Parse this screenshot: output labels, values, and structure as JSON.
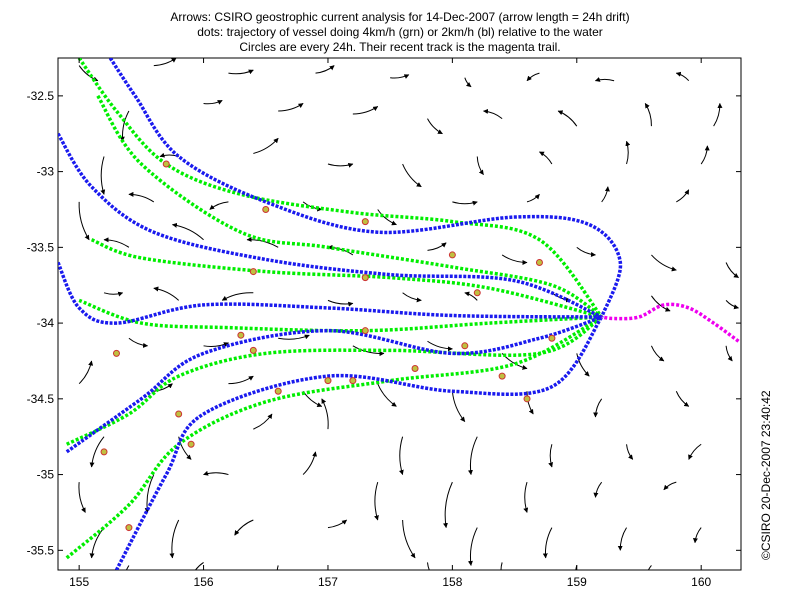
{
  "title_lines": [
    "Arrows: CSIRO geostrophic current analysis for 14-Dec-2007 (arrow length = 24h drift)",
    "dots: trajectory of vessel doing 4km/h (grn) or 2km/h (bl) relative to the water",
    "Circles are every 24h. Their recent track is the magenta trail."
  ],
  "stamp": "©CSIRO 20-Dec-2007 23:40:42",
  "colors": {
    "arrow": "#000000",
    "fast_track": "#00ee00",
    "slow_track": "#1a1aee",
    "recent_track": "#ee00ee",
    "day_marker_fill": "#c0c040",
    "day_marker_edge": "#cc3333"
  },
  "chart_data": {
    "type": "vector-field-with-trajectories",
    "xlim": [
      154.83,
      160.32
    ],
    "ylim": [
      -35.63,
      -32.25
    ],
    "x_ticks": [
      "155",
      "156",
      "157",
      "158",
      "159",
      "160"
    ],
    "x_tick_values": [
      155,
      156,
      157,
      158,
      159,
      160
    ],
    "y_ticks": [
      "-32.5",
      "-33",
      "-33.5",
      "-34",
      "-34.5",
      "-35",
      "-35.5"
    ],
    "y_tick_values": [
      -32.5,
      -33,
      -33.5,
      -34,
      -34.5,
      -35,
      -35.5
    ],
    "convergence_point": [
      159.2,
      -33.96
    ],
    "recent_track": [
      [
        160.3,
        -34.12
      ],
      [
        160.1,
        -34.0
      ],
      [
        159.9,
        -33.9
      ],
      [
        159.7,
        -33.88
      ],
      [
        159.5,
        -33.96
      ],
      [
        159.3,
        -33.97
      ],
      [
        159.2,
        -33.96
      ]
    ],
    "fast_tracks": [
      [
        [
          155.0,
          -32.25
        ],
        [
          155.3,
          -32.6
        ],
        [
          155.7,
          -32.95
        ],
        [
          156.3,
          -33.15
        ],
        [
          157.2,
          -33.27
        ],
        [
          158.0,
          -33.33
        ],
        [
          158.7,
          -33.45
        ],
        [
          159.2,
          -33.96
        ]
      ],
      [
        [
          155.15,
          -32.5
        ],
        [
          155.5,
          -32.95
        ],
        [
          156.3,
          -33.4
        ],
        [
          157.0,
          -33.5
        ],
        [
          158.0,
          -33.63
        ],
        [
          158.8,
          -33.75
        ],
        [
          159.2,
          -33.96
        ]
      ],
      [
        [
          155.1,
          -33.45
        ],
        [
          155.5,
          -33.57
        ],
        [
          156.5,
          -33.66
        ],
        [
          157.5,
          -33.7
        ],
        [
          158.3,
          -33.77
        ],
        [
          159.2,
          -33.96
        ]
      ],
      [
        [
          155.0,
          -33.85
        ],
        [
          155.5,
          -34.0
        ],
        [
          156.2,
          -34.03
        ],
        [
          157.3,
          -34.05
        ],
        [
          158.3,
          -34.0
        ],
        [
          159.2,
          -33.96
        ]
      ],
      [
        [
          154.9,
          -34.8
        ],
        [
          155.4,
          -34.6
        ],
        [
          155.8,
          -34.35
        ],
        [
          156.5,
          -34.2
        ],
        [
          157.5,
          -34.18
        ],
        [
          158.7,
          -34.2
        ],
        [
          159.2,
          -33.96
        ]
      ],
      [
        [
          154.9,
          -35.55
        ],
        [
          155.4,
          -35.2
        ],
        [
          155.8,
          -34.8
        ],
        [
          156.5,
          -34.52
        ],
        [
          157.5,
          -34.38
        ],
        [
          158.5,
          -34.27
        ],
        [
          159.2,
          -33.96
        ]
      ]
    ],
    "slow_tracks": [
      [
        [
          155.25,
          -32.25
        ],
        [
          155.45,
          -32.5
        ],
        [
          155.8,
          -32.9
        ],
        [
          156.5,
          -33.2
        ],
        [
          157.4,
          -33.4
        ],
        [
          158.5,
          -33.3
        ],
        [
          159.1,
          -33.35
        ],
        [
          159.35,
          -33.6
        ],
        [
          159.2,
          -33.96
        ]
      ],
      [
        [
          154.83,
          -32.75
        ],
        [
          155.1,
          -33.1
        ],
        [
          155.6,
          -33.4
        ],
        [
          156.5,
          -33.58
        ],
        [
          157.5,
          -33.68
        ],
        [
          158.5,
          -33.72
        ],
        [
          159.2,
          -33.96
        ]
      ],
      [
        [
          154.83,
          -33.6
        ],
        [
          155.0,
          -33.9
        ],
        [
          155.3,
          -34.0
        ],
        [
          156.0,
          -33.88
        ],
        [
          157.0,
          -33.9
        ],
        [
          158.0,
          -33.95
        ],
        [
          159.2,
          -33.96
        ]
      ],
      [
        [
          154.9,
          -34.85
        ],
        [
          155.5,
          -34.5
        ],
        [
          156.0,
          -34.2
        ],
        [
          157.0,
          -34.05
        ],
        [
          158.0,
          -34.2
        ],
        [
          158.7,
          -34.1
        ],
        [
          159.2,
          -33.96
        ]
      ],
      [
        [
          155.3,
          -35.63
        ],
        [
          155.7,
          -35.0
        ],
        [
          156.0,
          -34.6
        ],
        [
          157.0,
          -34.35
        ],
        [
          158.0,
          -34.45
        ],
        [
          158.8,
          -34.42
        ],
        [
          159.2,
          -33.96
        ]
      ]
    ],
    "day_markers": [
      [
        155.7,
        -32.95
      ],
      [
        156.5,
        -33.25
      ],
      [
        157.3,
        -33.33
      ],
      [
        158.0,
        -33.55
      ],
      [
        158.7,
        -33.6
      ],
      [
        156.4,
        -33.66
      ],
      [
        157.3,
        -33.7
      ],
      [
        158.2,
        -33.8
      ],
      [
        156.3,
        -34.08
      ],
      [
        157.3,
        -34.05
      ],
      [
        158.1,
        -34.15
      ],
      [
        158.8,
        -34.1
      ],
      [
        155.3,
        -34.2
      ],
      [
        156.4,
        -34.18
      ],
      [
        157.2,
        -34.38
      ],
      [
        158.4,
        -34.35
      ],
      [
        155.2,
        -34.85
      ],
      [
        155.8,
        -34.6
      ],
      [
        156.6,
        -34.45
      ],
      [
        157.7,
        -34.3
      ],
      [
        158.6,
        -34.5
      ],
      [
        155.4,
        -35.35
      ],
      [
        155.9,
        -34.8
      ],
      [
        157.0,
        -34.38
      ]
    ],
    "current_arrows": [
      [
        155.0,
        -32.3,
        0.15,
        -0.1
      ],
      [
        155.6,
        -32.3,
        0.18,
        0.05
      ],
      [
        156.2,
        -32.35,
        0.2,
        0.02
      ],
      [
        156.9,
        -32.35,
        0.15,
        0.05
      ],
      [
        157.5,
        -32.38,
        0.15,
        0.02
      ],
      [
        158.1,
        -32.38,
        0.05,
        -0.06
      ],
      [
        158.7,
        -32.35,
        -0.1,
        -0.05
      ],
      [
        159.3,
        -32.4,
        -0.15,
        0.0
      ],
      [
        159.9,
        -32.4,
        -0.1,
        0.05
      ],
      [
        155.4,
        -32.6,
        -0.05,
        -0.2
      ],
      [
        156.0,
        -32.55,
        0.15,
        0.02
      ],
      [
        156.6,
        -32.6,
        0.2,
        0.05
      ],
      [
        157.2,
        -32.62,
        0.2,
        0.05
      ],
      [
        157.8,
        -32.65,
        0.12,
        -0.1
      ],
      [
        158.4,
        -32.65,
        -0.15,
        0.05
      ],
      [
        159.0,
        -32.7,
        -0.15,
        0.1
      ],
      [
        159.6,
        -32.7,
        -0.05,
        0.15
      ],
      [
        160.1,
        -32.7,
        0.05,
        0.15
      ],
      [
        155.2,
        -32.9,
        0.0,
        -0.25
      ],
      [
        155.8,
        -32.9,
        -0.15,
        0.0
      ],
      [
        156.4,
        -32.88,
        0.2,
        0.1
      ],
      [
        157.0,
        -32.95,
        0.2,
        0.0
      ],
      [
        157.6,
        -32.95,
        0.15,
        -0.15
      ],
      [
        158.2,
        -32.9,
        0.05,
        -0.12
      ],
      [
        158.8,
        -32.95,
        -0.1,
        0.08
      ],
      [
        159.4,
        -32.95,
        0.0,
        0.15
      ],
      [
        160.0,
        -32.95,
        0.05,
        0.12
      ],
      [
        155.0,
        -33.2,
        0.08,
        -0.25
      ],
      [
        155.6,
        -33.2,
        -0.2,
        0.05
      ],
      [
        156.2,
        -33.2,
        -0.15,
        -0.05
      ],
      [
        156.8,
        -33.2,
        0.15,
        -0.05
      ],
      [
        157.4,
        -33.25,
        0.15,
        -0.1
      ],
      [
        158.0,
        -33.2,
        0.2,
        0.0
      ],
      [
        158.6,
        -33.2,
        0.1,
        0.05
      ],
      [
        159.2,
        -33.2,
        0.05,
        0.1
      ],
      [
        159.8,
        -33.2,
        0.1,
        0.08
      ],
      [
        155.4,
        -33.5,
        -0.2,
        0.05
      ],
      [
        156.0,
        -33.45,
        -0.25,
        0.1
      ],
      [
        156.6,
        -33.5,
        -0.25,
        0.05
      ],
      [
        157.2,
        -33.55,
        -0.2,
        0.05
      ],
      [
        157.8,
        -33.52,
        0.15,
        0.05
      ],
      [
        158.4,
        -33.55,
        0.2,
        -0.05
      ],
      [
        159.0,
        -33.5,
        0.15,
        -0.05
      ],
      [
        159.6,
        -33.55,
        0.2,
        -0.1
      ],
      [
        160.2,
        -33.6,
        0.1,
        -0.1
      ],
      [
        155.2,
        -33.8,
        0.15,
        0.0
      ],
      [
        155.8,
        -33.85,
        -0.2,
        0.08
      ],
      [
        156.4,
        -33.8,
        -0.25,
        -0.05
      ],
      [
        157.0,
        -33.85,
        0.2,
        -0.02
      ],
      [
        157.6,
        -33.8,
        0.15,
        -0.05
      ],
      [
        158.2,
        -33.85,
        -0.1,
        0.05
      ],
      [
        158.8,
        -33.8,
        0.15,
        -0.05
      ],
      [
        159.6,
        -33.82,
        0.15,
        -0.1
      ],
      [
        160.2,
        -33.85,
        0.1,
        -0.05
      ],
      [
        155.4,
        -34.1,
        0.15,
        -0.05
      ],
      [
        156.0,
        -34.15,
        0.2,
        0.02
      ],
      [
        156.6,
        -34.1,
        0.25,
        0.02
      ],
      [
        157.2,
        -34.15,
        0.25,
        -0.05
      ],
      [
        157.8,
        -34.12,
        0.2,
        -0.05
      ],
      [
        158.4,
        -34.2,
        0.2,
        -0.1
      ],
      [
        159.0,
        -34.2,
        0.1,
        -0.15
      ],
      [
        159.6,
        -34.15,
        0.1,
        -0.1
      ],
      [
        160.2,
        -34.15,
        0.05,
        -0.1
      ],
      [
        155.0,
        -34.4,
        0.1,
        0.15
      ],
      [
        155.6,
        -34.45,
        0.15,
        0.05
      ],
      [
        156.2,
        -34.4,
        0.2,
        0.05
      ],
      [
        156.8,
        -34.45,
        0.15,
        -0.1
      ],
      [
        157.4,
        -34.4,
        0.15,
        -0.15
      ],
      [
        158.0,
        -34.45,
        0.1,
        -0.2
      ],
      [
        158.6,
        -34.45,
        0.05,
        -0.15
      ],
      [
        159.2,
        -34.5,
        -0.05,
        -0.12
      ],
      [
        159.8,
        -34.45,
        0.1,
        -0.1
      ],
      [
        155.2,
        -34.75,
        -0.1,
        -0.2
      ],
      [
        155.8,
        -34.75,
        0.1,
        -0.15
      ],
      [
        156.4,
        -34.7,
        0.15,
        0.1
      ],
      [
        157.0,
        -34.7,
        -0.05,
        0.2
      ],
      [
        157.6,
        -34.75,
        0.0,
        -0.25
      ],
      [
        158.2,
        -34.75,
        -0.05,
        -0.25
      ],
      [
        158.8,
        -34.8,
        0.0,
        -0.15
      ],
      [
        159.4,
        -34.8,
        0.05,
        -0.1
      ],
      [
        160.0,
        -34.8,
        -0.1,
        -0.1
      ],
      [
        155.0,
        -35.05,
        0.05,
        -0.2
      ],
      [
        155.6,
        -35.0,
        -0.05,
        -0.25
      ],
      [
        156.2,
        -35.0,
        -0.2,
        0.0
      ],
      [
        156.8,
        -35.0,
        0.1,
        0.15
      ],
      [
        157.4,
        -35.05,
        0.0,
        -0.25
      ],
      [
        158.0,
        -35.05,
        -0.05,
        -0.3
      ],
      [
        158.6,
        -35.05,
        0.0,
        -0.2
      ],
      [
        159.2,
        -35.05,
        -0.05,
        -0.1
      ],
      [
        159.8,
        -35.05,
        -0.1,
        -0.05
      ],
      [
        155.2,
        -35.35,
        -0.1,
        -0.2
      ],
      [
        155.8,
        -35.3,
        -0.05,
        -0.25
      ],
      [
        156.4,
        -35.3,
        -0.15,
        -0.1
      ],
      [
        157.0,
        -35.35,
        0.15,
        0.05
      ],
      [
        157.6,
        -35.3,
        0.1,
        -0.25
      ],
      [
        158.2,
        -35.35,
        -0.05,
        -0.25
      ],
      [
        158.8,
        -35.35,
        -0.05,
        -0.2
      ],
      [
        159.4,
        -35.35,
        -0.05,
        -0.15
      ],
      [
        160.0,
        -35.35,
        -0.05,
        -0.1
      ],
      [
        155.4,
        -35.6,
        -0.05,
        -0.15
      ],
      [
        156.0,
        -35.58,
        -0.1,
        -0.1
      ],
      [
        156.6,
        -35.6,
        0.0,
        -0.1
      ],
      [
        157.8,
        -35.58,
        0.05,
        -0.1
      ],
      [
        158.4,
        -35.58,
        0.0,
        -0.1
      ],
      [
        159.0,
        -35.6,
        0.0,
        -0.1
      ],
      [
        159.6,
        -35.6,
        -0.05,
        -0.1
      ]
    ]
  }
}
